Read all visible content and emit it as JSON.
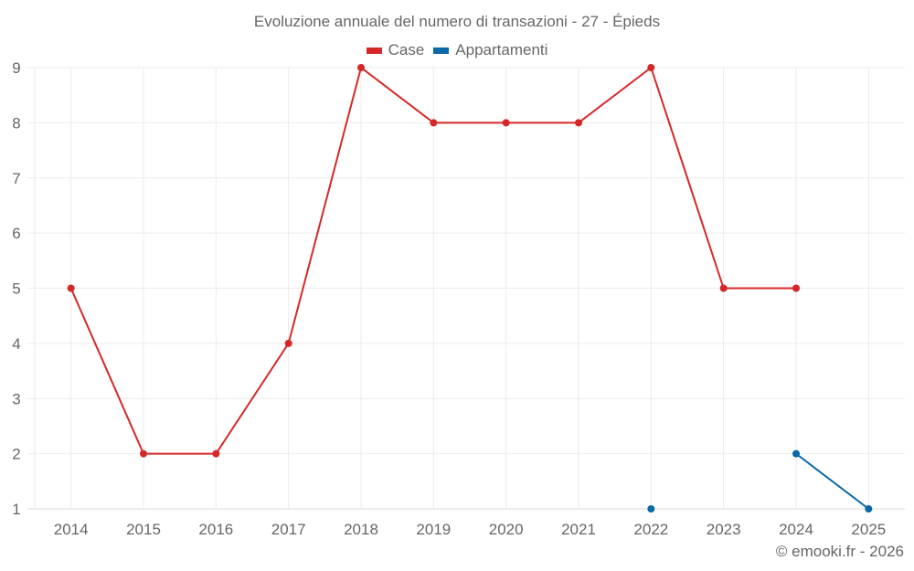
{
  "chart_data": {
    "type": "line",
    "title": "Evoluzione annuale del numero di transazioni - 27 - Épieds",
    "xlabel": "",
    "ylabel": "",
    "categories": [
      "2014",
      "2015",
      "2016",
      "2017",
      "2018",
      "2019",
      "2020",
      "2021",
      "2022",
      "2023",
      "2024",
      "2025"
    ],
    "ylim": [
      1,
      9
    ],
    "yticks": [
      1,
      2,
      3,
      4,
      5,
      6,
      7,
      8,
      9
    ],
    "grid": true,
    "legend_position": "top",
    "series": [
      {
        "name": "Case",
        "color": "#d62728",
        "values": [
          5,
          2,
          2,
          4,
          9,
          8,
          8,
          8,
          9,
          5,
          5,
          null
        ]
      },
      {
        "name": "Appartamenti",
        "color": "#0868a8",
        "values": [
          null,
          null,
          null,
          null,
          null,
          null,
          null,
          null,
          1,
          null,
          2,
          1
        ]
      }
    ]
  },
  "header": {
    "title": "Evoluzione annuale del numero di transazioni - 27 - Épieds"
  },
  "legend": {
    "items": [
      {
        "label": "Case",
        "color": "#d62728"
      },
      {
        "label": "Appartamenti",
        "color": "#0868a8"
      }
    ]
  },
  "footer": {
    "credit": "© emooki.fr - 2026"
  }
}
